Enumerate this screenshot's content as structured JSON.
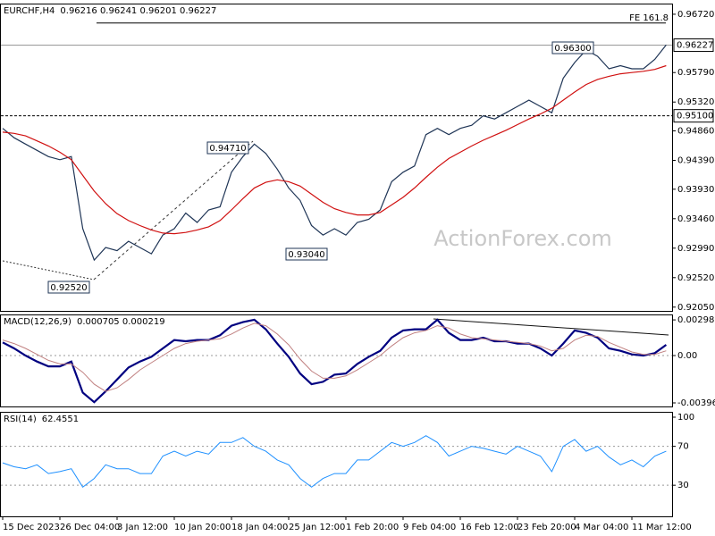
{
  "chart_data": [
    {
      "type": "line",
      "title": "EURCHF,H4",
      "ohlc_text": "0.96216 0.96241 0.96201 0.96227",
      "watermark": "ActionForex.com",
      "ylim": [
        0.9199,
        0.9689
      ],
      "yticks": [
        {
          "value": 0.9672,
          "label": "0.96720"
        },
        {
          "value": 0.9579,
          "label": "0.95790"
        },
        {
          "value": 0.9532,
          "label": "0.95320"
        },
        {
          "value": 0.9486,
          "label": "0.94860"
        },
        {
          "value": 0.9439,
          "label": "0.94390"
        },
        {
          "value": 0.9393,
          "label": "0.93930"
        },
        {
          "value": 0.9346,
          "label": "0.93460"
        },
        {
          "value": 0.9299,
          "label": "0.92990"
        },
        {
          "value": 0.9252,
          "label": "0.92520"
        },
        {
          "value": 0.9205,
          "label": "0.92050"
        }
      ],
      "levels": [
        {
          "value": 0.96227,
          "label": "0.96227",
          "style": "solid"
        },
        {
          "value": 0.951,
          "label": "0.95100",
          "style": "dotted"
        }
      ],
      "fe_line": {
        "value": 0.9658,
        "text": "FE 161.8"
      },
      "annotations": [
        "0.96300",
        "0.94710",
        "0.93040",
        "0.92520"
      ],
      "series": [
        {
          "color": "#1f3556",
          "line_width": 1.2,
          "values": [
            0.949,
            0.9475,
            0.9465,
            0.9455,
            0.9445,
            0.944,
            0.9445,
            0.933,
            0.928,
            0.93,
            0.9295,
            0.931,
            0.93,
            0.929,
            0.932,
            0.933,
            0.9355,
            0.934,
            0.936,
            0.9365,
            0.942,
            0.9445,
            0.9465,
            0.945,
            0.9425,
            0.9395,
            0.9375,
            0.9335,
            0.932,
            0.933,
            0.932,
            0.934,
            0.9345,
            0.936,
            0.9405,
            0.942,
            0.943,
            0.948,
            0.949,
            0.948,
            0.949,
            0.9495,
            0.951,
            0.9505,
            0.9515,
            0.9525,
            0.9535,
            0.9525,
            0.9515,
            0.957,
            0.9595,
            0.9615,
            0.9605,
            0.9585,
            0.959,
            0.9585,
            0.9585,
            0.96,
            0.9623
          ]
        },
        {
          "color": "#d01010",
          "line_width": 1.2,
          "values": [
            0.9484,
            0.9482,
            0.9478,
            0.947,
            0.9462,
            0.9452,
            0.944,
            0.9415,
            0.939,
            0.937,
            0.9354,
            0.9343,
            0.9335,
            0.9328,
            0.9323,
            0.9322,
            0.9324,
            0.9328,
            0.9333,
            0.9343,
            0.936,
            0.9378,
            0.9395,
            0.9404,
            0.9408,
            0.9405,
            0.9398,
            0.9385,
            0.9372,
            0.9362,
            0.9356,
            0.9352,
            0.9352,
            0.9356,
            0.9368,
            0.938,
            0.9395,
            0.9412,
            0.9428,
            0.9442,
            0.9452,
            0.9462,
            0.9471,
            0.9479,
            0.9487,
            0.9496,
            0.9505,
            0.9513,
            0.9522,
            0.9535,
            0.9548,
            0.956,
            0.9568,
            0.9573,
            0.9577,
            0.9579,
            0.9581,
            0.9584,
            0.959
          ]
        }
      ]
    },
    {
      "type": "line",
      "title": "MACD(12,26,9)",
      "readout": "0.000705 0.000219",
      "ylim": [
        -0.00426,
        0.00344
      ],
      "yticks": [
        0.002985,
        {
          "value": 0,
          "label": "0.00"
        },
        -0.00396
      ],
      "dotted_levels": [
        0
      ],
      "series": [
        {
          "color": "#000080",
          "line_width": 2.2,
          "values": [
            0.0011,
            0.0006,
            0.0,
            -0.0005,
            -0.0009,
            -0.0009,
            -0.0005,
            -0.0031,
            -0.0039,
            -0.003,
            -0.002,
            -0.001,
            -0.0005,
            -0.0001,
            0.0006,
            0.0013,
            0.0012,
            0.0013,
            0.0013,
            0.0017,
            0.0025,
            0.0028,
            0.003,
            0.0022,
            0.001,
            -0.0001,
            -0.0015,
            -0.0024,
            -0.0022,
            -0.0016,
            -0.0015,
            -0.0007,
            -0.0001,
            0.0004,
            0.0015,
            0.0021,
            0.0022,
            0.0022,
            0.003,
            0.0019,
            0.0013,
            0.0013,
            0.0015,
            0.0012,
            0.0012,
            0.001,
            0.001,
            0.0006,
            0.0,
            0.001,
            0.0021,
            0.0019,
            0.0015,
            0.0006,
            0.0004,
            0.0001,
            0.0,
            0.0002,
            0.0009
          ]
        },
        {
          "color": "#c08080",
          "line_width": 1,
          "values": [
            0.0013,
            0.001,
            0.0006,
            0.0001,
            -0.0004,
            -0.0007,
            -0.0007,
            -0.0014,
            -0.0024,
            -0.003,
            -0.0027,
            -0.002,
            -0.0012,
            -0.0006,
            0.0,
            0.0006,
            0.001,
            0.0012,
            0.0013,
            0.0014,
            0.0018,
            0.0023,
            0.0027,
            0.0025,
            0.0018,
            0.0009,
            -0.0003,
            -0.0013,
            -0.0019,
            -0.0019,
            -0.0017,
            -0.0012,
            -0.0006,
            0.0,
            0.0008,
            0.0015,
            0.0019,
            0.0021,
            0.0025,
            0.0023,
            0.0018,
            0.0015,
            0.0014,
            0.0013,
            0.0012,
            0.0011,
            0.001,
            0.0008,
            0.0004,
            0.0006,
            0.0013,
            0.0017,
            0.0016,
            0.0011,
            0.0007,
            0.0003,
            0.0001,
            0.0001,
            0.0004
          ]
        }
      ]
    },
    {
      "type": "line",
      "title": "RSI(14)",
      "readout": "62.4551",
      "ylim": [
        -2,
        105.5
      ],
      "yticks": [
        100,
        70,
        30
      ],
      "dotted_levels": [
        70,
        30
      ],
      "categories": [
        "15 Dec 2023",
        null,
        null,
        null,
        null,
        "26 Dec 04:00",
        null,
        null,
        null,
        null,
        "3 Jan 12:00",
        null,
        null,
        null,
        null,
        "10 Jan 20:00",
        null,
        null,
        null,
        null,
        "18 Jan 04:00",
        null,
        null,
        null,
        null,
        "25 Jan 12:00",
        null,
        null,
        null,
        null,
        "1 Feb 20:00",
        null,
        null,
        null,
        null,
        "9 Feb 04:00",
        null,
        null,
        null,
        null,
        "16 Feb 12:00",
        null,
        null,
        null,
        null,
        "23 Feb 20:00",
        null,
        null,
        null,
        null,
        "4 Mar 04:00",
        null,
        null,
        null,
        null,
        "11 Mar 12:00",
        null,
        null,
        null
      ],
      "series": [
        {
          "color": "#1e90ff",
          "line_width": 1,
          "values": [
            53,
            49,
            47,
            51,
            42,
            44,
            47,
            28,
            37,
            51,
            47,
            47,
            42,
            42,
            60,
            65,
            60,
            65,
            62,
            74,
            74,
            79,
            70,
            65,
            56,
            51,
            37,
            28,
            37,
            42,
            42,
            56,
            56,
            65,
            74,
            70,
            74,
            81,
            74,
            60,
            65,
            70,
            68,
            65,
            62,
            70,
            65,
            60,
            44,
            70,
            77,
            65,
            70,
            59,
            51,
            56,
            49,
            60,
            65
          ]
        }
      ]
    }
  ]
}
